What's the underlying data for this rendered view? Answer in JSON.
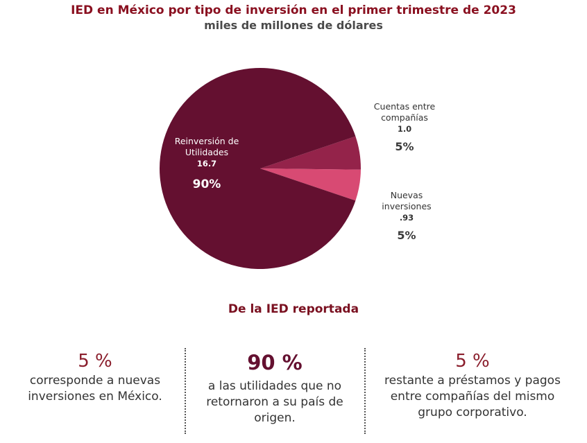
{
  "header": {
    "title": "IED en México por tipo de inversión en el primer trimestre de 2023",
    "subtitle": "miles de millones de dólares"
  },
  "chart_data": {
    "type": "pie",
    "title": "IED en México por tipo de inversión en el primer trimestre de 2023",
    "subtitle": "miles de millones de dólares",
    "slices": [
      {
        "label": "Reinversión de Utilidades",
        "value_text": "16.7",
        "value": 16.7,
        "percent": "90%",
        "color": "#641030"
      },
      {
        "label": "Cuentas entre compañías",
        "value_text": "1.0",
        "value": 1.0,
        "percent": "5%",
        "color": "#94234a"
      },
      {
        "label": "Nuevas inversiones",
        "value_text": ".93",
        "value": 0.93,
        "percent": "5%",
        "color": "#d84a73"
      }
    ]
  },
  "summary": {
    "heading": "De la IED reportada",
    "columns": [
      {
        "percent": "5 %",
        "text": "corresponde a nuevas inversiones en México."
      },
      {
        "percent": "90 %",
        "text": "a las utilidades que no retornaron a su país de origen."
      },
      {
        "percent": "5 %",
        "text": "restante a préstamos y pagos entre compañías del mismo grupo corporativo."
      }
    ]
  }
}
